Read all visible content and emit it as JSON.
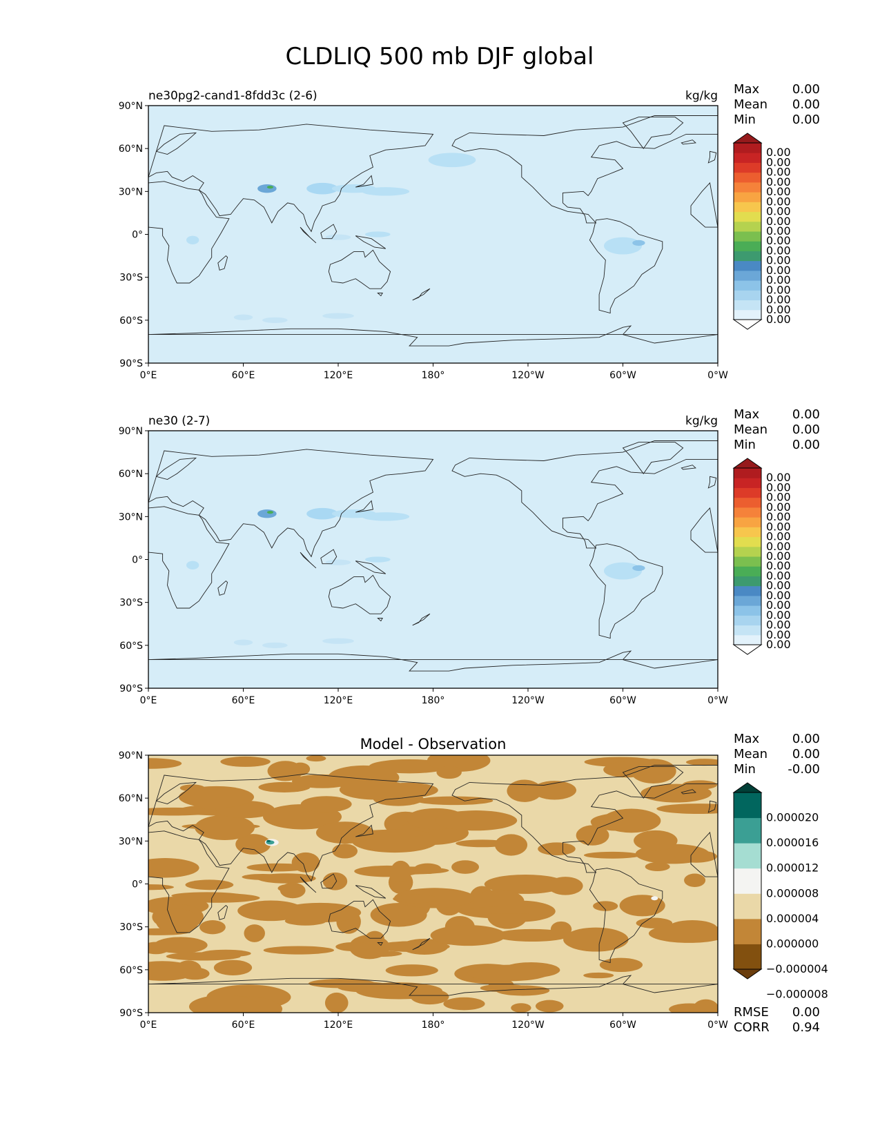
{
  "figure_title": "CLDLIQ 500 mb DJF global",
  "colors": {
    "ocean_background": "#d6edf8",
    "diff_background": "#ead8a8",
    "diff_negative": "#c28637",
    "coast": "#222222"
  },
  "chart_data": [
    {
      "type": "heatmap",
      "name": "panel-test",
      "left_title": "ne30pg2-cand1-8fdd3c (2-6)",
      "center_title": "",
      "units": "kg/kg",
      "stats": [
        {
          "label": "Max",
          "value": "0.00"
        },
        {
          "label": "Mean",
          "value": "0.00"
        },
        {
          "label": "Min",
          "value": "0.00"
        }
      ],
      "xlim": [
        0,
        360
      ],
      "ylim": [
        -90,
        90
      ],
      "x_ticks": [
        "0°E",
        "60°E",
        "120°E",
        "180°",
        "120°W",
        "60°W",
        "0°W"
      ],
      "y_ticks": [
        "90°N",
        "60°N",
        "30°N",
        "0°",
        "30°S",
        "60°S",
        "90°S"
      ],
      "colorbar": {
        "extend": "both",
        "colors": [
          "#ffffff",
          "#e3f2fb",
          "#c5e4f5",
          "#a8d4ef",
          "#8cc3e8",
          "#6ba7d7",
          "#4a89c4",
          "#3d9a6f",
          "#4aad56",
          "#7bbf4f",
          "#b5d24f",
          "#e2dd4f",
          "#f7c64d",
          "#f8a442",
          "#f5823a",
          "#ec5e2f",
          "#dd3b28",
          "#c82424",
          "#b01c1f",
          "#961a1c"
        ],
        "labels": [
          "0.00",
          "0.00",
          "0.00",
          "0.00",
          "0.00",
          "0.00",
          "0.00",
          "0.00",
          "0.00",
          "0.00",
          "0.00",
          "0.00",
          "0.00",
          "0.00",
          "0.00",
          "0.00",
          "0.00",
          "0.00"
        ]
      },
      "notes": []
    },
    {
      "type": "heatmap",
      "name": "panel-reference",
      "left_title": "ne30 (2-7)",
      "center_title": "",
      "units": "kg/kg",
      "stats": [
        {
          "label": "Max",
          "value": "0.00"
        },
        {
          "label": "Mean",
          "value": "0.00"
        },
        {
          "label": "Min",
          "value": "0.00"
        }
      ],
      "xlim": [
        0,
        360
      ],
      "ylim": [
        -90,
        90
      ],
      "x_ticks": [
        "0°E",
        "60°E",
        "120°E",
        "180°",
        "120°W",
        "60°W",
        "0°W"
      ],
      "y_ticks": [
        "90°N",
        "60°N",
        "30°N",
        "0°",
        "30°S",
        "60°S",
        "90°S"
      ],
      "colorbar": {
        "extend": "both",
        "colors": [
          "#ffffff",
          "#e3f2fb",
          "#c5e4f5",
          "#a8d4ef",
          "#8cc3e8",
          "#6ba7d7",
          "#4a89c4",
          "#3d9a6f",
          "#4aad56",
          "#7bbf4f",
          "#b5d24f",
          "#e2dd4f",
          "#f7c64d",
          "#f8a442",
          "#f5823a",
          "#ec5e2f",
          "#dd3b28",
          "#c82424",
          "#b01c1f",
          "#961a1c"
        ],
        "labels": [
          "0.00",
          "0.00",
          "0.00",
          "0.00",
          "0.00",
          "0.00",
          "0.00",
          "0.00",
          "0.00",
          "0.00",
          "0.00",
          "0.00",
          "0.00",
          "0.00",
          "0.00",
          "0.00",
          "0.00",
          "0.00"
        ]
      },
      "notes": []
    },
    {
      "type": "heatmap",
      "name": "panel-diff",
      "left_title": "",
      "center_title": "Model - Observation",
      "units": "",
      "stats": [
        {
          "label": "Max",
          "value": "0.00"
        },
        {
          "label": "Mean",
          "value": "0.00"
        },
        {
          "label": "Min",
          "value": "-0.00"
        }
      ],
      "xlim": [
        0,
        360
      ],
      "ylim": [
        -90,
        90
      ],
      "x_ticks": [
        "0°E",
        "60°E",
        "120°E",
        "180°",
        "120°W",
        "60°W",
        "0°W"
      ],
      "y_ticks": [
        "90°N",
        "60°N",
        "30°N",
        "0°",
        "30°S",
        "60°S",
        "90°S"
      ],
      "colorbar": {
        "extend": "both",
        "colors": [
          "#6a3d0c",
          "#82500f",
          "#c28637",
          "#ead8a8",
          "#f4f4f2",
          "#a5ddd2",
          "#3b9f94",
          "#01665e",
          "#013f37"
        ],
        "labels": [
          "0.000020",
          "0.000016",
          "0.000012",
          "0.000008",
          "0.000004",
          "0.000000",
          "−0.000004",
          "−0.000008"
        ]
      },
      "notes": [
        {
          "label": "RMSE",
          "value": "0.00"
        },
        {
          "label": "CORR",
          "value": "0.94"
        }
      ]
    }
  ]
}
